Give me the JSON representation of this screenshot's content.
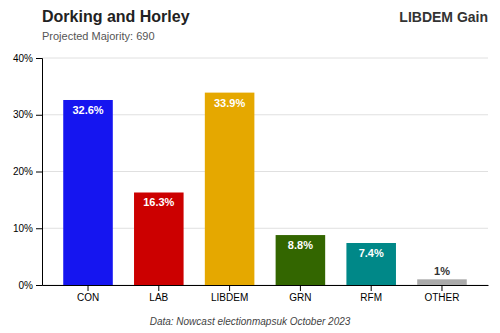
{
  "chart_data": {
    "type": "bar",
    "title": "Dorking and Horley",
    "subtitle": "Projected Majority: 690",
    "annotations": [
      "LIBDEM Gain",
      "Data: Nowcast electionmapsuk October 2023"
    ],
    "categories": [
      "CON",
      "LAB",
      "LIBDEM",
      "GRN",
      "RFM",
      "OTHER"
    ],
    "values": [
      32.6,
      16.3,
      33.9,
      8.8,
      7.4,
      1.0
    ],
    "value_labels": [
      "32.6%",
      "16.3%",
      "33.9%",
      "8.8%",
      "7.4%",
      "1%"
    ],
    "colors": [
      "#1515f0",
      "#cc0000",
      "#e5a800",
      "#336600",
      "#008888",
      "#aaaaaa"
    ],
    "ylim": [
      0,
      40
    ],
    "yticks": [
      {
        "value": 0,
        "label": "0%"
      },
      {
        "value": 10,
        "label": "10%"
      },
      {
        "value": 20,
        "label": "20%"
      },
      {
        "value": 30,
        "label": "30%"
      },
      {
        "value": 40,
        "label": "40%"
      }
    ],
    "grid": true,
    "data_labels": true
  }
}
